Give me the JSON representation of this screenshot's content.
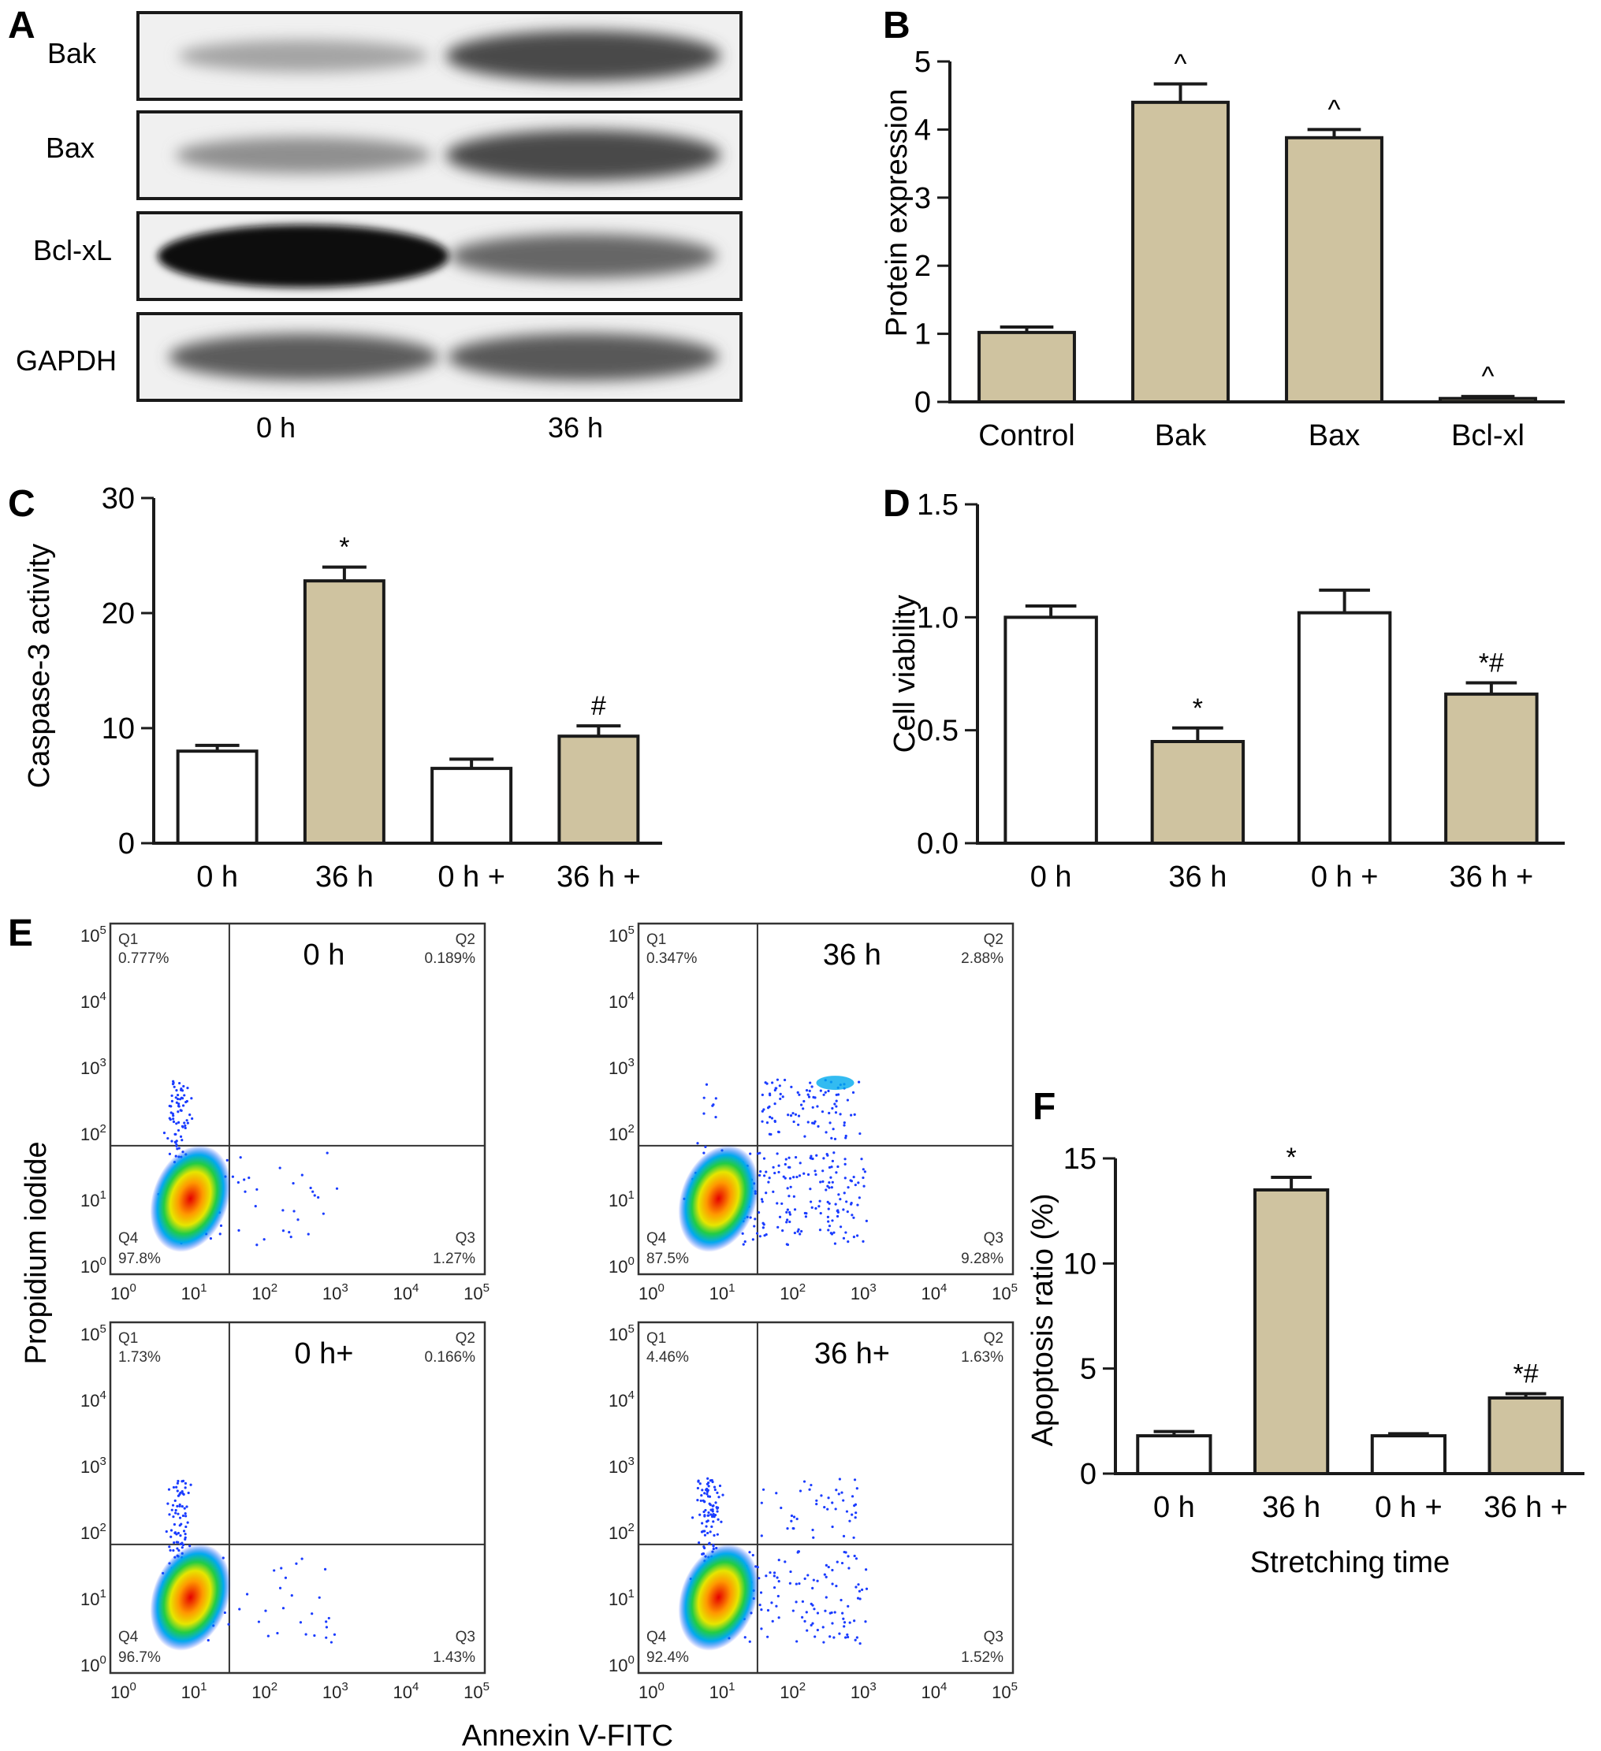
{
  "panel_A": {
    "letter": "A",
    "rows": [
      "Bak",
      "Bax",
      "Bcl-xL",
      "GAPDH"
    ],
    "lanes": [
      "0 h",
      "36 h"
    ],
    "intensity": {
      "Bak": [
        0.25,
        0.7
      ],
      "Bax": [
        0.35,
        0.7
      ],
      "Bcl-xL": [
        1.0,
        0.55
      ],
      "GAPDH": [
        0.6,
        0.62
      ]
    }
  },
  "panel_B": {
    "letter": "B"
  },
  "panel_C": {
    "letter": "C"
  },
  "panel_D": {
    "letter": "D"
  },
  "panel_E": {
    "letter": "E",
    "ylabel": "Propidium iodide",
    "xlabel": "Annexin V-FITC",
    "plots": [
      {
        "title": "0 h",
        "q1": "0.777%",
        "q2": "0.189%",
        "q3": "1.27%",
        "q4": "97.8%"
      },
      {
        "title": "36 h",
        "q1": "0.347%",
        "q2": "2.88%",
        "q3": "9.28%",
        "q4": "87.5%"
      },
      {
        "title": "0 h+",
        "q1": "1.73%",
        "q2": "0.166%",
        "q3": "1.43%",
        "q4": "96.7%"
      },
      {
        "title": "36 h+",
        "q1": "4.46%",
        "q2": "1.63%",
        "q3": "1.52%",
        "q4": "92.4%"
      }
    ],
    "quadrant_names": [
      "Q1",
      "Q2",
      "Q3",
      "Q4"
    ]
  },
  "panel_F": {
    "letter": "F"
  },
  "colors": {
    "fill_treated": "#cfc3a0",
    "fill_control": "#ffffff",
    "bar_stroke": "#1a1a1a"
  },
  "chart_data": [
    {
      "panel": "B",
      "type": "bar",
      "categories": [
        "Control",
        "Bak",
        "Bax",
        "Bcl-xl"
      ],
      "values": [
        1.02,
        4.4,
        3.88,
        0.05
      ],
      "errors": [
        0.08,
        0.27,
        0.12,
        0.03
      ],
      "annotations": [
        "",
        "^",
        "^",
        "^"
      ],
      "fills": [
        "treated",
        "treated",
        "treated",
        "treated"
      ],
      "title": "",
      "xlabel": "",
      "ylabel": "Protein expression",
      "ylim": [
        0,
        5
      ],
      "yticks": [
        0,
        1,
        2,
        3,
        4,
        5
      ],
      "ytick_labels": [
        "0",
        "1",
        "2",
        "3",
        "4",
        "5"
      ]
    },
    {
      "panel": "C",
      "type": "bar",
      "categories": [
        "0 h",
        "36 h",
        "0 h +",
        "36 h +"
      ],
      "values": [
        8,
        22.8,
        6.5,
        9.3
      ],
      "errors": [
        0.5,
        1.2,
        0.8,
        0.9
      ],
      "annotations": [
        "",
        "*",
        "",
        "#"
      ],
      "fills": [
        "control",
        "treated",
        "control",
        "treated"
      ],
      "title": "",
      "xlabel": "",
      "ylabel": "Caspase-3 activity",
      "ylim": [
        0,
        30
      ],
      "yticks": [
        0,
        10,
        20,
        30
      ],
      "ytick_labels": [
        "0",
        "10",
        "20",
        "30"
      ]
    },
    {
      "panel": "D",
      "type": "bar",
      "categories": [
        "0 h",
        "36 h",
        "0 h +",
        "36 h +"
      ],
      "values": [
        1.0,
        0.45,
        1.02,
        0.66
      ],
      "errors": [
        0.05,
        0.06,
        0.1,
        0.05
      ],
      "annotations": [
        "",
        "*",
        "",
        "*#"
      ],
      "fills": [
        "control",
        "treated",
        "control",
        "treated"
      ],
      "title": "",
      "xlabel": "",
      "ylabel": "Cell viability",
      "ylim": [
        0,
        1.5
      ],
      "yticks": [
        0,
        0.5,
        1.0,
        1.5
      ],
      "ytick_labels": [
        "0.0",
        "0.5",
        "1.0",
        "1.5"
      ]
    },
    {
      "panel": "F",
      "type": "bar",
      "categories": [
        "0 h",
        "36 h",
        "0 h +",
        "36 h +"
      ],
      "values": [
        1.8,
        13.5,
        1.8,
        3.6
      ],
      "errors": [
        0.2,
        0.6,
        0.1,
        0.2
      ],
      "annotations": [
        "",
        "*",
        "",
        "*#"
      ],
      "fills": [
        "control",
        "treated",
        "control",
        "treated"
      ],
      "title": "",
      "xlabel": "Stretching time",
      "ylabel": "Apoptosis ratio (%)",
      "ylim": [
        0,
        15
      ],
      "yticks": [
        0,
        5,
        10,
        15
      ],
      "ytick_labels": [
        "0",
        "5",
        "10",
        "15"
      ]
    }
  ]
}
